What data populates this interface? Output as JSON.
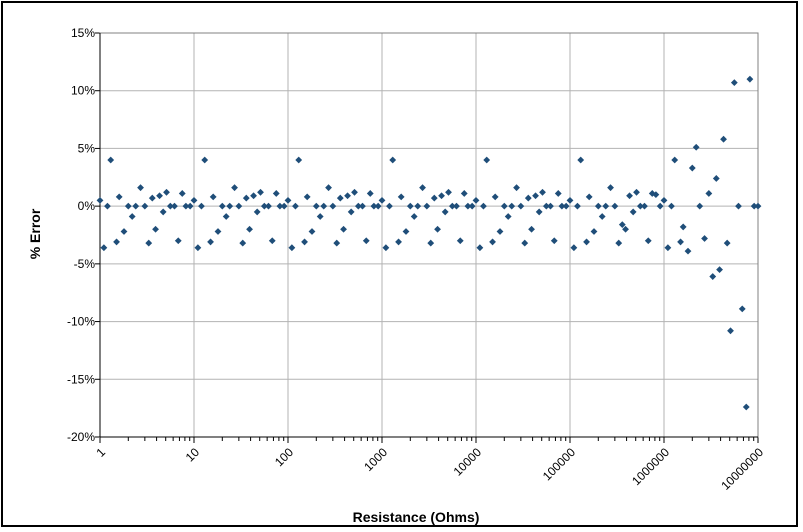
{
  "chart_data": {
    "type": "scatter",
    "title": "",
    "xlabel": "Resistance (Ohms)",
    "ylabel": "% Error",
    "x_scale": "log",
    "xlim": [
      1,
      10000000
    ],
    "ylim": [
      -20,
      15
    ],
    "x_tick_labels": [
      "1",
      "10",
      "100",
      "1000",
      "10000",
      "100000",
      "1000000",
      "10000000"
    ],
    "y_tick_labels": [
      "-20%",
      "-15%",
      "-10%",
      "-5%",
      "0%",
      "5%",
      "10%",
      "15%"
    ],
    "y_tick_values": [
      -20,
      -15,
      -10,
      -5,
      0,
      5,
      10,
      15
    ],
    "grid": true,
    "legend": "none",
    "marker_color": "#1F4E79",
    "series": [
      {
        "x": [
          1,
          1.1,
          1.2,
          1.3,
          1.5,
          1.6,
          1.8,
          2,
          2.2,
          2.4,
          2.7,
          3,
          3.3,
          3.6,
          3.9,
          4.3,
          4.7,
          5.1,
          5.6,
          6.2,
          6.8,
          7.5,
          8.2,
          9.1,
          10,
          11,
          12,
          13,
          15,
          16,
          18,
          20,
          22,
          24,
          27,
          30,
          33,
          36,
          39,
          43,
          47,
          51,
          56,
          62,
          68,
          75,
          82,
          91,
          100,
          110,
          120,
          130,
          150,
          160,
          180,
          200,
          220,
          240,
          270,
          300,
          330,
          360,
          390,
          430,
          470,
          510,
          560,
          620,
          680,
          750,
          820,
          910,
          1000,
          1100,
          1200,
          1300,
          1500,
          1600,
          1800,
          2000,
          2200,
          2400,
          2700,
          3000,
          3300,
          3600,
          3900,
          4300,
          4700,
          5100,
          5600,
          6200,
          6800,
          7500,
          8200,
          9100,
          10000,
          11000,
          12000,
          13000,
          15000,
          16000,
          18000,
          20000,
          22000,
          24000,
          27000,
          30000,
          33000,
          36000,
          39000,
          43000,
          47000,
          51000,
          56000,
          62000,
          68000,
          75000,
          82000,
          91000,
          100000,
          110000,
          120000,
          130000,
          150000,
          160000,
          180000,
          200000,
          220000,
          240000,
          270000,
          300000,
          330000,
          360000,
          390000,
          430000,
          470000,
          510000,
          560000,
          620000,
          680000,
          750000,
          820000,
          910000,
          1000000,
          1100000,
          1200000,
          1300000,
          1500000,
          1600000,
          1800000,
          2000000,
          2200000,
          2400000,
          2700000,
          3000000,
          3300000,
          3600000,
          3900000,
          4300000,
          4700000,
          5100000,
          5600000,
          6200000,
          6800000,
          7500000,
          8200000,
          9100000,
          10000000
        ],
        "y": [
          0.5,
          -3.6,
          0,
          4.0,
          -3.1,
          0.8,
          -2.2,
          0,
          -0.9,
          0,
          1.6,
          0,
          -3.2,
          0.7,
          -2.0,
          0.9,
          -0.5,
          1.2,
          0,
          0,
          -3.0,
          1.1,
          0,
          0,
          0.5,
          -3.6,
          0,
          4.0,
          -3.1,
          0.8,
          -2.2,
          0,
          -0.9,
          0,
          1.6,
          0,
          -3.2,
          0.7,
          -2.0,
          0.9,
          -0.5,
          1.2,
          0,
          0,
          -3.0,
          1.1,
          0,
          0,
          0.5,
          -3.6,
          0,
          4.0,
          -3.1,
          0.8,
          -2.2,
          0,
          -0.9,
          0,
          1.6,
          0,
          -3.2,
          0.7,
          -2.0,
          0.9,
          -0.5,
          1.2,
          0,
          0,
          -3.0,
          1.1,
          0,
          0,
          0.5,
          -3.6,
          0,
          4.0,
          -3.1,
          0.8,
          -2.2,
          0,
          -0.9,
          0,
          1.6,
          0,
          -3.2,
          0.7,
          -2.0,
          0.9,
          -0.5,
          1.2,
          0,
          0,
          -3.0,
          1.1,
          0,
          0,
          0.5,
          -3.6,
          0,
          4.0,
          -3.1,
          0.8,
          -2.2,
          0,
          -0.9,
          0,
          1.6,
          0,
          -3.2,
          0.7,
          -2.0,
          0.9,
          -0.5,
          1.2,
          0,
          0,
          -3.0,
          1.1,
          0,
          0,
          0.5,
          -3.6,
          0,
          4.0,
          -3.1,
          0.8,
          -2.2,
          0,
          -0.9,
          0,
          1.6,
          0,
          -3.2,
          -1.6,
          -2.0,
          0.9,
          -0.5,
          1.2,
          0,
          0,
          -3.0,
          1.1,
          1.0,
          0,
          0.5,
          -3.6,
          0,
          4.0,
          -3.1,
          -1.8,
          -3.9,
          3.3,
          5.1,
          0,
          -2.8,
          1.1,
          -6.1,
          2.4,
          -5.5,
          5.8,
          -3.2,
          -10.8,
          10.7,
          0,
          -8.9,
          -17.4,
          11.0,
          0,
          0
        ]
      }
    ]
  }
}
